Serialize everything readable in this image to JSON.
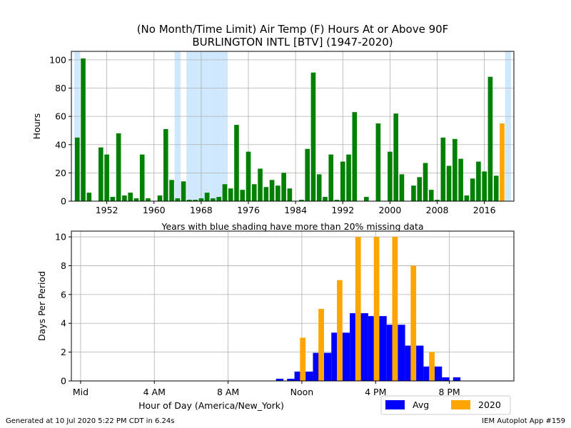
{
  "title_line1": "(No Month/Time Limit) Air Temp (F) Hours At or Above 90F",
  "title_line2": "BURLINGTON INTL [BTV] (1947-2020)",
  "footer_left": "Generated at 10 Jul 2020 5:22 PM CDT in 6.24s",
  "footer_right": "IEM Autoplot App #159",
  "colors": {
    "years_bar": "#008000",
    "current_year_bar": "#ffa500",
    "missing_shade": "#cfe8fe",
    "avg_bar": "#0000ff",
    "current_bar": "#ffa500"
  },
  "chart_data": [
    {
      "type": "bar",
      "ylabel": "Hours",
      "xlabel": "Years with blue shading have more than 20% missing data",
      "xlim": [
        1946,
        2021
      ],
      "ylim": [
        0,
        106
      ],
      "xticks": [
        1952,
        1960,
        1968,
        1976,
        1984,
        1992,
        2000,
        2008,
        2016
      ],
      "yticks": [
        0,
        20,
        40,
        60,
        80,
        100
      ],
      "grid": true,
      "x": [
        1947,
        1948,
        1949,
        1950,
        1951,
        1952,
        1953,
        1954,
        1955,
        1956,
        1957,
        1958,
        1959,
        1960,
        1961,
        1962,
        1963,
        1964,
        1965,
        1966,
        1967,
        1968,
        1969,
        1970,
        1971,
        1972,
        1973,
        1974,
        1975,
        1976,
        1977,
        1978,
        1979,
        1980,
        1981,
        1982,
        1983,
        1984,
        1985,
        1986,
        1987,
        1988,
        1989,
        1990,
        1991,
        1992,
        1993,
        1994,
        1995,
        1996,
        1997,
        1998,
        1999,
        2000,
        2001,
        2002,
        2003,
        2004,
        2005,
        2006,
        2007,
        2008,
        2009,
        2010,
        2011,
        2012,
        2013,
        2014,
        2015,
        2016,
        2017,
        2018,
        2019,
        2020
      ],
      "values": [
        45,
        101,
        6,
        0,
        38,
        33,
        3,
        48,
        4,
        6,
        2,
        33,
        2,
        0,
        4,
        51,
        15,
        2,
        14,
        1,
        1,
        2,
        6,
        2,
        3,
        12,
        9,
        54,
        8,
        35,
        12,
        23,
        10,
        15,
        11,
        20,
        9,
        0,
        1,
        37,
        91,
        19,
        3,
        33,
        1,
        28,
        33,
        63,
        0,
        3,
        0,
        55,
        0,
        35,
        62,
        19,
        0,
        11,
        17,
        27,
        8,
        1,
        45,
        25,
        44,
        30,
        4,
        16,
        28,
        21,
        88,
        18,
        55,
        0
      ],
      "missing_shaded_years": [
        1947,
        1964,
        1966,
        1967,
        1968,
        1969,
        1970,
        1971,
        1972,
        2020
      ]
    },
    {
      "type": "bar",
      "ylabel": "Days Per Period",
      "xlabel": "Hour of Day (America/New_York)",
      "xlim": [
        -0.5,
        23.5
      ],
      "ylim": [
        0,
        10.4
      ],
      "xticks": [
        0,
        4,
        8,
        12,
        16,
        20
      ],
      "xtick_labels": [
        "Mid",
        "4 AM",
        "8 AM",
        "Noon",
        "4 PM",
        "8 PM"
      ],
      "yticks": [
        0,
        2,
        4,
        6,
        8,
        10
      ],
      "grid": true,
      "legend": "bottom-right",
      "x": [
        0,
        1,
        2,
        3,
        4,
        5,
        6,
        7,
        8,
        9,
        10,
        11,
        12,
        13,
        14,
        15,
        16,
        17,
        18,
        19,
        20,
        21,
        22,
        23
      ],
      "series": [
        {
          "name": "Avg",
          "values": [
            0,
            0,
            0,
            0,
            0,
            0,
            0,
            0,
            0,
            0,
            0,
            0.15,
            0.65,
            1.95,
            3.35,
            4.7,
            4.5,
            3.9,
            2.45,
            1.0,
            0.25,
            0,
            0,
            0
          ]
        },
        {
          "name": "2020",
          "values": [
            0,
            0,
            0,
            0,
            0,
            0,
            0,
            0,
            0,
            0,
            0,
            0,
            3,
            5,
            7,
            10,
            10,
            10,
            8,
            2,
            0,
            0,
            0,
            0
          ]
        }
      ]
    }
  ]
}
